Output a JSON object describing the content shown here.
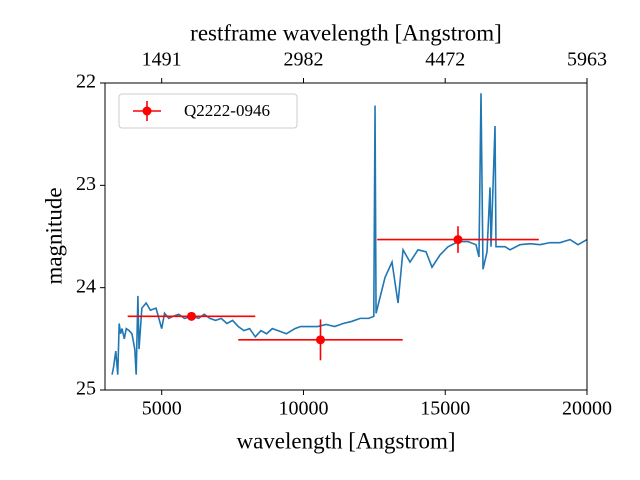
{
  "chart_data": {
    "type": "line",
    "x_label": "wavelength [Angstrom]",
    "y_label": "magnitude",
    "x2_label": "restframe wavelength [Angstrom]",
    "xlim": [
      3000,
      20000
    ],
    "xticks": [
      5000,
      10000,
      15000,
      20000
    ],
    "x2lim": [
      895,
      5963
    ],
    "x2ticks": [
      1491,
      2982,
      4472,
      5963
    ],
    "ylim": [
      25,
      22
    ],
    "yticks": [
      22,
      23,
      24,
      25
    ],
    "legend": "upper left",
    "series": [
      {
        "color": "#1f77b4",
        "x": [
          3250,
          3300,
          3380,
          3450,
          3500,
          3550,
          3600,
          3680,
          3750,
          3850,
          3950,
          4050,
          4100,
          4160,
          4200,
          4300,
          4450,
          4600,
          4800,
          5000,
          5100,
          5250,
          5400,
          5600,
          5800,
          6100,
          6300,
          6500,
          6700,
          6900,
          7100,
          7300,
          7500,
          7700,
          7900,
          8100,
          8300,
          8500,
          8700,
          8900,
          9100,
          9400,
          9700,
          9900,
          10200,
          10500,
          10800,
          11100,
          11400,
          11700,
          12000,
          12300,
          12480,
          12524,
          12560,
          12877,
          13123,
          13335,
          13512,
          13758,
          14040,
          14323,
          14534,
          14817,
          15099,
          15452,
          15804,
          16085,
          16190,
          16261,
          16332,
          16473,
          16580,
          16615,
          16756,
          16790,
          17109,
          17286,
          17637,
          17990,
          18343,
          18695,
          19048,
          19400,
          19683,
          20000
        ],
        "values": [
          24.85,
          24.78,
          24.62,
          24.85,
          24.35,
          24.45,
          24.4,
          24.5,
          24.4,
          24.42,
          24.45,
          24.6,
          24.85,
          24.08,
          24.6,
          24.2,
          24.15,
          24.22,
          24.2,
          24.4,
          24.25,
          24.3,
          24.28,
          24.26,
          24.3,
          24.28,
          24.3,
          24.26,
          24.3,
          24.32,
          24.3,
          24.35,
          24.32,
          24.38,
          24.42,
          24.4,
          24.48,
          24.42,
          24.45,
          24.4,
          24.42,
          24.45,
          24.4,
          24.38,
          24.38,
          24.38,
          24.36,
          24.38,
          24.35,
          24.33,
          24.3,
          24.3,
          24.28,
          22.22,
          24.25,
          23.9,
          23.75,
          24.15,
          23.63,
          23.75,
          23.63,
          23.65,
          23.8,
          23.68,
          23.6,
          23.55,
          23.55,
          23.58,
          23.7,
          22.1,
          23.82,
          23.65,
          23.02,
          23.6,
          22.42,
          23.6,
          23.6,
          23.63,
          23.58,
          23.57,
          23.58,
          23.56,
          23.56,
          23.53,
          23.58,
          23.53
        ]
      },
      {
        "name": "Q2222-0946",
        "type": "errorbar",
        "color": "#ff0000",
        "x": [
          6050,
          10600,
          15450
        ],
        "values": [
          24.28,
          24.51,
          23.53
        ],
        "xerr": [
          2250,
          2900,
          2850
        ],
        "yerr": [
          0.02,
          0.2,
          0.13
        ]
      }
    ]
  }
}
